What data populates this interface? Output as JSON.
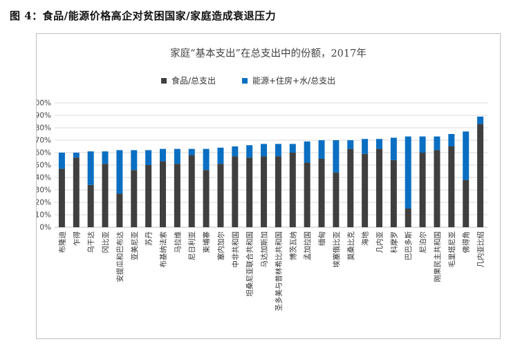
{
  "caption": "图 4：食品/能源价格高企对贫困国家/家庭造成衰退压力",
  "colors": {
    "food": "#3f3f3f",
    "energy": "#0a6fc2",
    "grid": "#d9d9d9",
    "axis": "#bfbfbf"
  },
  "chart_data": {
    "type": "bar",
    "stacked": true,
    "title": "家庭“基本支出”在总支出中的份额，2017年",
    "legend_position": "top",
    "grid": true,
    "ylim": [
      0,
      100
    ],
    "yticks": [
      "0%",
      "10%",
      "20%",
      "30%",
      "40%",
      "50%",
      "60%",
      "70%",
      "80%",
      "90%",
      "100%"
    ],
    "categories": [
      "布隆迪",
      "乍得",
      "乌干达",
      "冈比亚",
      "安提瓜和巴布达",
      "亚美尼亚",
      "苏丹",
      "布基纳法索",
      "马拉维",
      "尼日利亚",
      "柬埔寨",
      "塞内加尔",
      "中非共和国",
      "坦桑尼亚联合共和国",
      "马达加斯加",
      "圣多美与普林希比共和国",
      "博茨瓦纳",
      "孟加拉国",
      "缅甸",
      "埃塞俄比亚",
      "莫桑比克",
      "海地",
      "几内亚",
      "科摩罗",
      "巴巴多斯",
      "尼泊尔",
      "刚果民主共和国",
      "毛里塔尼亚",
      "佛得角",
      "几内亚比绍"
    ],
    "series": [
      {
        "name": "食品/总支出",
        "values": [
          47,
          56,
          34,
          51,
          27,
          46,
          50,
          53,
          51,
          58,
          46,
          51,
          57,
          56,
          57,
          57,
          60,
          52,
          55,
          44,
          63,
          59,
          63,
          54,
          15,
          60,
          62,
          65,
          38,
          83
        ]
      },
      {
        "name": "能源+住房+水/总支出",
        "values": [
          13,
          4,
          27,
          10,
          35,
          16,
          12,
          10,
          12,
          5,
          17,
          13,
          8,
          10,
          10,
          10,
          7,
          17,
          15,
          26,
          7,
          12,
          8,
          18,
          58,
          13,
          11,
          10,
          39,
          6
        ]
      }
    ]
  }
}
